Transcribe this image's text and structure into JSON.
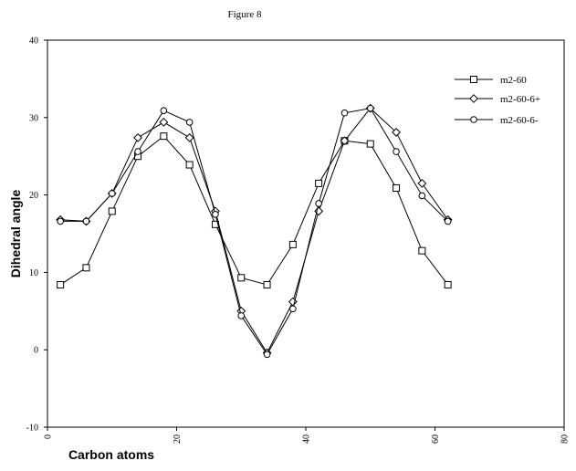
{
  "figure_title": "Figure 8",
  "chart_data": {
    "type": "line",
    "title": "Figure 8",
    "xlabel": "Carbon atoms",
    "ylabel": "Dihedral angle",
    "xlim": [
      0,
      80
    ],
    "ylim": [
      -10,
      40
    ],
    "x_ticks": [
      "0",
      "20",
      "40",
      "60",
      "80"
    ],
    "y_ticks": [
      "-10",
      "0",
      "10",
      "20",
      "30",
      "40"
    ],
    "grid": false,
    "legend_position": "top-right",
    "x": [
      2,
      6,
      10,
      14,
      18,
      22,
      26,
      30,
      34,
      38,
      42,
      46,
      50,
      54,
      58,
      62
    ],
    "series": [
      {
        "name": "m2-60",
        "marker": "square",
        "values": [
          8.4,
          10.6,
          17.9,
          25.0,
          27.6,
          23.9,
          16.2,
          9.3,
          8.4,
          13.6,
          21.5,
          27.0,
          26.6,
          20.9,
          12.8,
          8.4
        ]
      },
      {
        "name": "m2-60-6+",
        "marker": "diamond",
        "values": [
          16.8,
          16.6,
          20.2,
          27.4,
          29.4,
          27.4,
          17.9,
          5.0,
          -0.4,
          6.2,
          17.9,
          27.0,
          31.2,
          28.1,
          21.5,
          16.8
        ]
      },
      {
        "name": "m2-60-6-",
        "marker": "circle",
        "values": [
          16.6,
          16.6,
          20.2,
          25.6,
          30.9,
          29.4,
          17.5,
          4.4,
          -0.6,
          5.3,
          18.9,
          30.6,
          31.2,
          25.6,
          19.9,
          16.6
        ]
      }
    ]
  }
}
